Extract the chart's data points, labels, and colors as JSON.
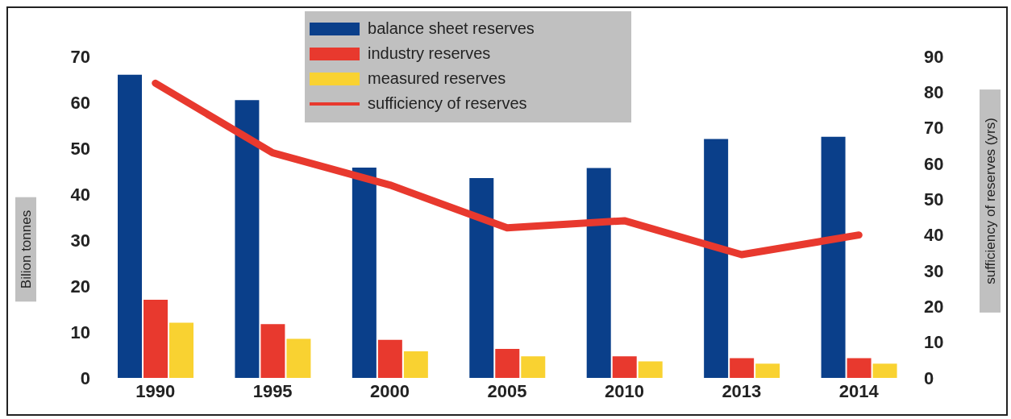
{
  "chart_data": {
    "type": "bar",
    "categories": [
      "1990",
      "1995",
      "2000",
      "2005",
      "2010",
      "2013",
      "2014"
    ],
    "ylabel": "Bilion tonnes",
    "y2label": "sufficiency of reserves (yrs)",
    "ylim": [
      0,
      70
    ],
    "yticks": [
      0,
      10,
      20,
      30,
      40,
      50,
      60,
      70
    ],
    "y2lim": [
      0,
      90
    ],
    "y2ticks": [
      0,
      10,
      20,
      30,
      40,
      50,
      60,
      70,
      80,
      90
    ],
    "legend": "top",
    "grid": false,
    "series": [
      {
        "name": "balance sheet reserves",
        "color": "#0a3f8a",
        "values": [
          66,
          60.5,
          45.8,
          43.5,
          45.7,
          52,
          52.5
        ]
      },
      {
        "name": "industry reserves",
        "color": "#e8392e",
        "values": [
          17,
          11.7,
          8.3,
          6.3,
          4.7,
          4.3,
          4.3
        ]
      },
      {
        "name": "measured reserves",
        "color": "#f9d231",
        "values": [
          12,
          8.5,
          5.8,
          4.7,
          3.6,
          3.1,
          3.1
        ]
      },
      {
        "name": "sufficiency of reserves",
        "type": "line",
        "axis": "y2",
        "color": "#e8392e",
        "values": [
          82.5,
          63,
          54,
          42,
          44,
          34.5,
          40
        ]
      }
    ]
  }
}
